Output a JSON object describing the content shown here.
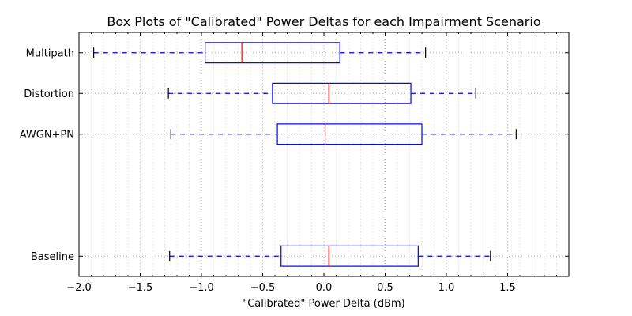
{
  "chart_data": {
    "type": "boxplot",
    "orientation": "horizontal",
    "title": "Box Plots of \"Calibrated\" Power Deltas for each Impairment Scenario",
    "xlabel": "\"Calibrated\" Power Delta (dBm)",
    "ylabel": "",
    "xlim": [
      -2.0,
      2.0
    ],
    "xticks": [
      -2.0,
      -1.5,
      -1.0,
      -0.5,
      0.0,
      0.5,
      1.0,
      1.5
    ],
    "xtick_labels": [
      "−2.0",
      "−1.5",
      "−1.0",
      "−0.5",
      "0.0",
      "0.5",
      "1.0",
      "1.5"
    ],
    "ylim": [
      0.5,
      6.5
    ],
    "grid": true,
    "colors": {
      "box": "#0000ff",
      "median": "#ff0000",
      "caps": "#000000"
    },
    "boxes": [
      {
        "label": "Baseline",
        "position": 1,
        "whisker_low": -1.26,
        "q1": -0.35,
        "median": 0.04,
        "q3": 0.77,
        "whisker_high": 1.36
      },
      {
        "label": "AWGN+PN",
        "position": 4,
        "whisker_low": -1.25,
        "q1": -0.38,
        "median": 0.01,
        "q3": 0.8,
        "whisker_high": 1.57
      },
      {
        "label": "Distortion",
        "position": 5,
        "whisker_low": -1.27,
        "q1": -0.42,
        "median": 0.04,
        "q3": 0.71,
        "whisker_high": 1.24
      },
      {
        "label": "Multipath",
        "position": 6,
        "whisker_low": -1.88,
        "q1": -0.97,
        "median": -0.67,
        "q3": 0.13,
        "whisker_high": 0.83
      }
    ]
  }
}
